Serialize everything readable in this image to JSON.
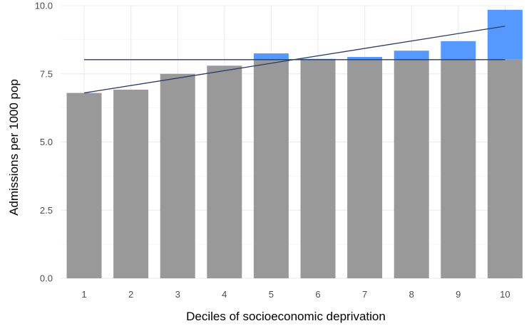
{
  "chart_data": {
    "type": "bar",
    "xlabel": "Deciles of socioeconomic deprivation",
    "ylabel": "Admissions per 1000 pop",
    "categories": [
      "1",
      "2",
      "3",
      "4",
      "5",
      "6",
      "7",
      "8",
      "9",
      "10"
    ],
    "values": [
      6.8,
      6.92,
      7.5,
      7.8,
      8.25,
      8.05,
      8.12,
      8.35,
      8.7,
      9.85
    ],
    "reference_value": 8.02,
    "excess_above_reference_highlighted": true,
    "trend_line": {
      "start": 6.8,
      "end": 9.25
    },
    "ylim": [
      0,
      10
    ],
    "yticks": [
      "0.0",
      "2.5",
      "5.0",
      "7.5",
      "10.0"
    ],
    "grid": true,
    "colors": {
      "bar": "#999999",
      "highlight": "#5599ff",
      "line": "#2b3a67",
      "grid": "#ebebeb"
    }
  }
}
